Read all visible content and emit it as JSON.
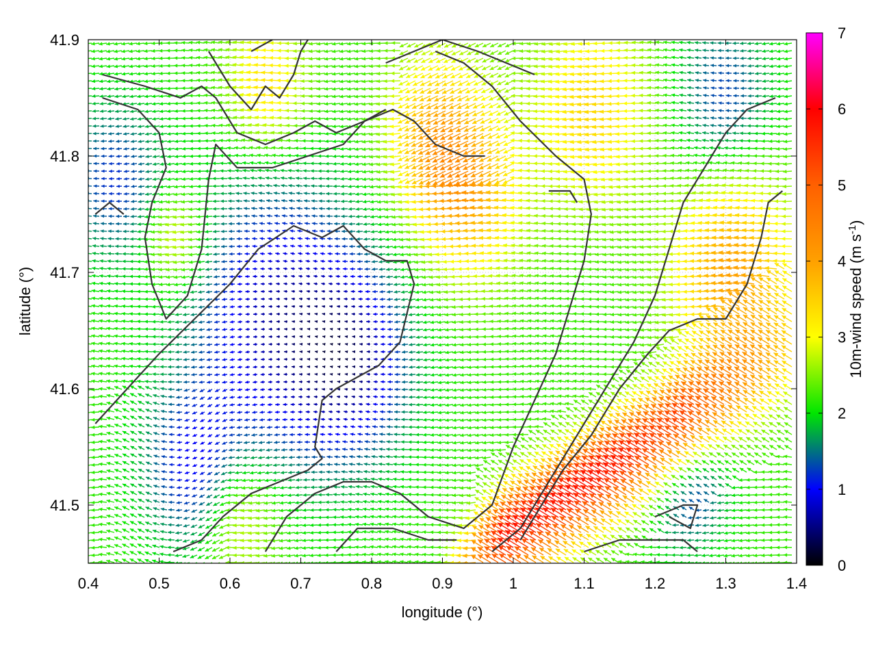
{
  "chart_data": {
    "type": "vector-field",
    "xlabel": "longitude (°)",
    "ylabel": "latitude (°)",
    "colorbar_label": "10m-wind speed (m s",
    "colorbar_label_sup": "-1",
    "colorbar_label_end": ")",
    "xlim": [
      0.4,
      1.4
    ],
    "ylim": [
      41.45,
      41.9
    ],
    "x_ticks": [
      0.4,
      0.5,
      0.6,
      0.7,
      0.8,
      0.9,
      1.0,
      1.1,
      1.2,
      1.3,
      1.4
    ],
    "x_tick_labels": [
      "0.4",
      "0.5",
      "0.6",
      "0.7",
      "0.8",
      "0.9",
      "1",
      "1.1",
      "1.2",
      "1.3",
      "1.4"
    ],
    "y_ticks": [
      41.5,
      41.6,
      41.7,
      41.8,
      41.9
    ],
    "y_tick_labels": [
      "41.5",
      "41.6",
      "41.7",
      "41.8",
      "41.9"
    ],
    "colorbar_range": [
      0,
      7
    ],
    "colorbar_ticks": [
      0,
      1,
      2,
      3,
      4,
      5,
      6,
      7
    ],
    "colorbar_tick_labels": [
      "0",
      "1",
      "2",
      "3",
      "4",
      "5",
      "6",
      "7"
    ],
    "colormap": [
      {
        "value": 0,
        "color": "#000000"
      },
      {
        "value": 1,
        "color": "#0000ff"
      },
      {
        "value": 2,
        "color": "#00e600"
      },
      {
        "value": 3,
        "color": "#ffff00"
      },
      {
        "value": 4,
        "color": "#ffa000"
      },
      {
        "value": 5,
        "color": "#ff6000"
      },
      {
        "value": 6,
        "color": "#ff0000"
      },
      {
        "value": 7,
        "color": "#ff00ff"
      }
    ],
    "grid": "dotted",
    "contour_color": "#333333",
    "contours": [
      [
        [
          0.42,
          41.87
        ],
        [
          0.48,
          41.86
        ],
        [
          0.53,
          41.85
        ],
        [
          0.56,
          41.86
        ],
        [
          0.58,
          41.85
        ],
        [
          0.61,
          41.82
        ],
        [
          0.65,
          41.81
        ],
        [
          0.69,
          41.82
        ],
        [
          0.72,
          41.83
        ],
        [
          0.75,
          41.82
        ],
        [
          0.79,
          41.83
        ],
        [
          0.82,
          41.84
        ]
      ],
      [
        [
          0.42,
          41.85
        ],
        [
          0.47,
          41.84
        ],
        [
          0.5,
          41.82
        ],
        [
          0.51,
          41.79
        ],
        [
          0.49,
          41.76
        ],
        [
          0.48,
          41.73
        ],
        [
          0.49,
          41.69
        ],
        [
          0.51,
          41.66
        ],
        [
          0.54,
          41.68
        ],
        [
          0.56,
          41.72
        ],
        [
          0.57,
          41.78
        ],
        [
          0.58,
          41.81
        ],
        [
          0.61,
          41.79
        ],
        [
          0.66,
          41.79
        ],
        [
          0.71,
          41.8
        ],
        [
          0.76,
          41.81
        ],
        [
          0.79,
          41.83
        ],
        [
          0.83,
          41.84
        ],
        [
          0.86,
          41.83
        ],
        [
          0.89,
          41.81
        ],
        [
          0.93,
          41.8
        ],
        [
          0.96,
          41.8
        ]
      ],
      [
        [
          0.57,
          41.89
        ],
        [
          0.6,
          41.86
        ],
        [
          0.63,
          41.84
        ],
        [
          0.65,
          41.86
        ],
        [
          0.67,
          41.85
        ],
        [
          0.68,
          41.86
        ],
        [
          0.69,
          41.87
        ],
        [
          0.7,
          41.89
        ],
        [
          0.71,
          41.9
        ]
      ],
      [
        [
          0.82,
          41.88
        ],
        [
          0.86,
          41.89
        ],
        [
          0.9,
          41.9
        ],
        [
          0.95,
          41.89
        ],
        [
          0.99,
          41.88
        ],
        [
          1.03,
          41.87
        ]
      ],
      [
        [
          0.63,
          41.89
        ],
        [
          0.66,
          41.9
        ]
      ],
      [
        [
          0.41,
          41.57
        ],
        [
          0.44,
          41.59
        ],
        [
          0.47,
          41.61
        ],
        [
          0.5,
          41.63
        ],
        [
          0.55,
          41.66
        ],
        [
          0.6,
          41.69
        ],
        [
          0.64,
          41.72
        ],
        [
          0.69,
          41.74
        ],
        [
          0.73,
          41.73
        ],
        [
          0.76,
          41.74
        ],
        [
          0.79,
          41.72
        ],
        [
          0.82,
          41.71
        ],
        [
          0.85,
          41.71
        ],
        [
          0.86,
          41.69
        ],
        [
          0.84,
          41.64
        ],
        [
          0.81,
          41.62
        ],
        [
          0.78,
          41.61
        ],
        [
          0.75,
          41.6
        ],
        [
          0.73,
          41.59
        ],
        [
          0.72,
          41.55
        ],
        [
          0.73,
          41.54
        ],
        [
          0.71,
          41.53
        ],
        [
          0.67,
          41.52
        ],
        [
          0.63,
          41.51
        ],
        [
          0.59,
          41.49
        ],
        [
          0.56,
          41.47
        ],
        [
          0.52,
          41.46
        ]
      ],
      [
        [
          0.65,
          41.46
        ],
        [
          0.68,
          41.49
        ],
        [
          0.72,
          41.51
        ],
        [
          0.76,
          41.52
        ],
        [
          0.8,
          41.52
        ],
        [
          0.84,
          41.51
        ],
        [
          0.88,
          41.49
        ],
        [
          0.93,
          41.48
        ],
        [
          0.97,
          41.5
        ],
        [
          1.0,
          41.55
        ],
        [
          1.03,
          41.59
        ],
        [
          1.06,
          41.63
        ],
        [
          1.08,
          41.67
        ],
        [
          1.1,
          41.71
        ],
        [
          1.11,
          41.75
        ],
        [
          1.1,
          41.78
        ],
        [
          1.06,
          41.8
        ],
        [
          1.01,
          41.83
        ],
        [
          0.97,
          41.86
        ],
        [
          0.93,
          41.88
        ],
        [
          0.89,
          41.89
        ]
      ],
      [
        [
          0.75,
          41.46
        ],
        [
          0.78,
          41.48
        ],
        [
          0.83,
          41.48
        ],
        [
          0.88,
          41.47
        ],
        [
          0.92,
          41.47
        ]
      ],
      [
        [
          0.97,
          41.46
        ],
        [
          1.01,
          41.48
        ],
        [
          1.05,
          41.52
        ],
        [
          1.09,
          41.56
        ],
        [
          1.13,
          41.6
        ],
        [
          1.17,
          41.64
        ],
        [
          1.2,
          41.68
        ],
        [
          1.22,
          41.72
        ],
        [
          1.24,
          41.76
        ],
        [
          1.27,
          41.79
        ],
        [
          1.3,
          41.82
        ],
        [
          1.33,
          41.84
        ],
        [
          1.37,
          41.85
        ]
      ],
      [
        [
          1.01,
          41.47
        ],
        [
          1.04,
          41.5
        ],
        [
          1.07,
          41.53
        ],
        [
          1.11,
          41.56
        ],
        [
          1.15,
          41.6
        ],
        [
          1.19,
          41.63
        ],
        [
          1.22,
          41.65
        ],
        [
          1.26,
          41.66
        ],
        [
          1.3,
          41.66
        ],
        [
          1.33,
          41.69
        ],
        [
          1.35,
          41.73
        ],
        [
          1.36,
          41.76
        ],
        [
          1.38,
          41.77
        ]
      ],
      [
        [
          1.1,
          41.46
        ],
        [
          1.15,
          41.47
        ],
        [
          1.2,
          41.47
        ],
        [
          1.24,
          41.47
        ],
        [
          1.26,
          41.46
        ]
      ],
      [
        [
          1.2,
          41.49
        ],
        [
          1.24,
          41.5
        ],
        [
          1.26,
          41.5
        ],
        [
          1.25,
          41.48
        ],
        [
          1.22,
          41.49
        ]
      ],
      [
        [
          1.05,
          41.77
        ],
        [
          1.08,
          41.77
        ],
        [
          1.09,
          41.76
        ]
      ],
      [
        [
          0.41,
          41.75
        ],
        [
          0.43,
          41.76
        ],
        [
          0.45,
          41.75
        ]
      ]
    ]
  }
}
